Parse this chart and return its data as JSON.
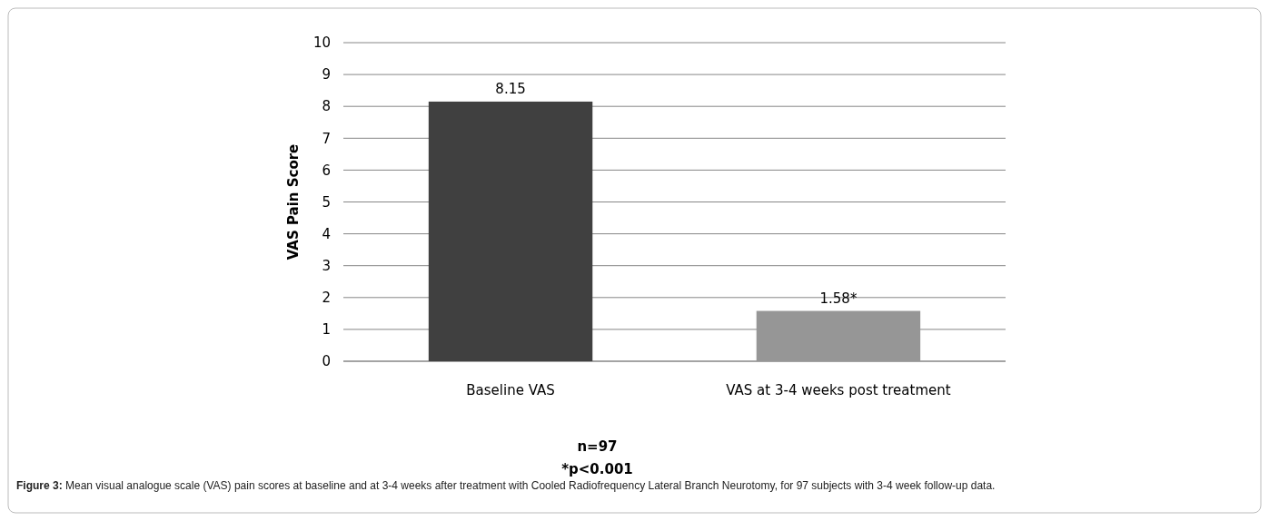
{
  "chart_data": {
    "type": "bar",
    "ylabel": "VAS Pain Score",
    "categories": [
      "Baseline VAS",
      "VAS at 3-4 weeks post treatment"
    ],
    "values": [
      8.15,
      1.58
    ],
    "colors": [
      "#404040",
      "#969696"
    ],
    "value_labels": [
      "8.15",
      "1.58*"
    ],
    "ylim": [
      0,
      10
    ],
    "yticks": [
      0,
      1,
      2,
      3,
      4,
      5,
      6,
      7,
      8,
      9,
      10
    ],
    "grid": "y",
    "annotations": [
      "n=97",
      "*p<0.001",
      "Figure 3: Mean visual analogue scale (VAS) pain scores at baseline and at 3-4 weeks after treatment with Cooled Radiofrequency Lateral Branch Neurotomy, for 97 subjects with 3-4 week follow-up data."
    ]
  }
}
